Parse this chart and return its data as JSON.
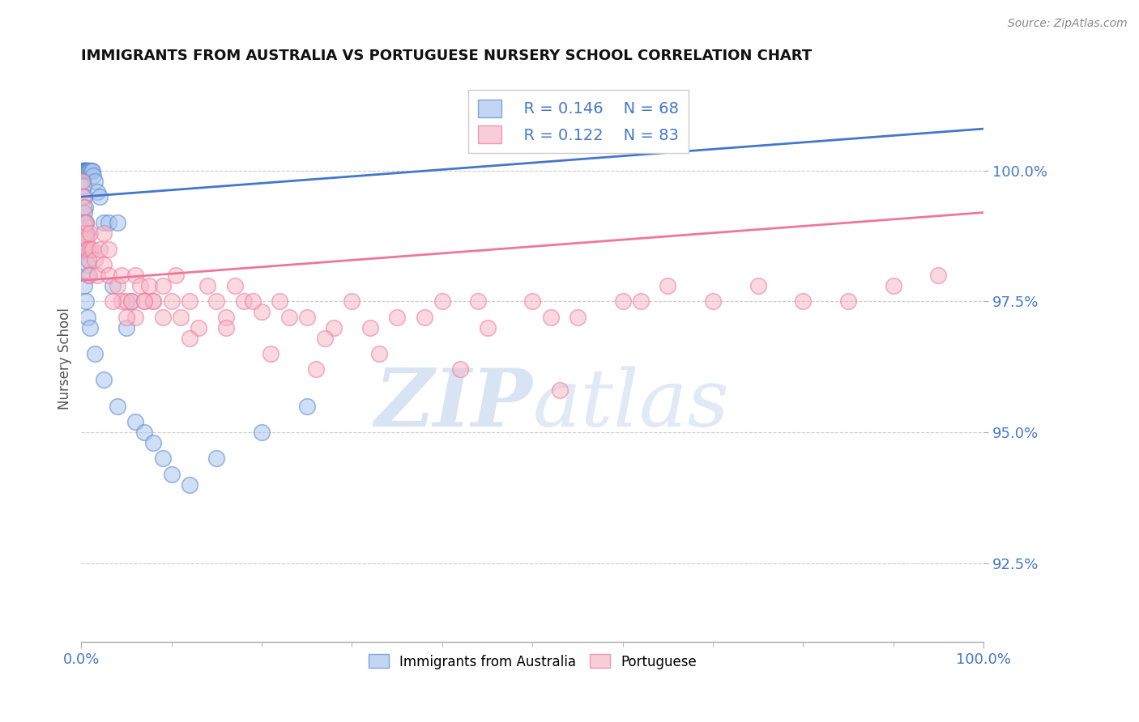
{
  "title": "IMMIGRANTS FROM AUSTRALIA VS PORTUGUESE NURSERY SCHOOL CORRELATION CHART",
  "source_text": "Source: ZipAtlas.com",
  "ylabel": "Nursery School",
  "xlim": [
    0.0,
    100.0
  ],
  "ylim": [
    91.0,
    101.8
  ],
  "yticks": [
    92.5,
    95.0,
    97.5,
    100.0
  ],
  "ytick_labels": [
    "92.5%",
    "95.0%",
    "97.5%",
    "100.0%"
  ],
  "xtick_labels_left": "0.0%",
  "xtick_labels_right": "100.0%",
  "legend_r1": "R = 0.146",
  "legend_n1": "N = 68",
  "legend_r2": "R = 0.122",
  "legend_n2": "N = 83",
  "color_blue": "#aac4f0",
  "color_pink": "#f5b8c8",
  "color_blue_edge": "#5588cc",
  "color_pink_edge": "#ee7799",
  "color_blue_line": "#4477cc",
  "color_pink_line": "#ee7799",
  "color_axis_text": "#4477cc",
  "watermark_zip": "ZIP",
  "watermark_atlas": "atlas",
  "background_color": "#FFFFFF",
  "blue_scatter_x": [
    0.1,
    0.15,
    0.2,
    0.2,
    0.25,
    0.25,
    0.3,
    0.3,
    0.35,
    0.35,
    0.4,
    0.4,
    0.45,
    0.5,
    0.5,
    0.5,
    0.55,
    0.6,
    0.6,
    0.65,
    0.7,
    0.7,
    0.75,
    0.8,
    0.9,
    1.0,
    1.1,
    1.2,
    1.3,
    1.5,
    1.8,
    2.0,
    2.5,
    3.0,
    4.0,
    0.15,
    0.2,
    0.3,
    0.4,
    0.5,
    0.6,
    0.7,
    0.8,
    0.3,
    0.4,
    0.5,
    0.6,
    0.7,
    0.8,
    3.5,
    5.0,
    5.5,
    0.3,
    0.5,
    0.7,
    1.0,
    1.5,
    2.5,
    4.0,
    6.0,
    7.0,
    8.0,
    9.0,
    10.0,
    12.0,
    15.0,
    20.0,
    25.0
  ],
  "blue_scatter_y": [
    100.0,
    100.0,
    100.0,
    100.0,
    100.0,
    100.0,
    100.0,
    100.0,
    100.0,
    100.0,
    100.0,
    100.0,
    100.0,
    100.0,
    100.0,
    100.0,
    100.0,
    100.0,
    100.0,
    100.0,
    100.0,
    100.0,
    100.0,
    100.0,
    100.0,
    100.0,
    100.0,
    100.0,
    99.9,
    99.8,
    99.6,
    99.5,
    99.0,
    99.0,
    99.0,
    99.8,
    99.7,
    99.5,
    99.3,
    99.0,
    98.8,
    98.5,
    98.3,
    99.2,
    99.0,
    98.8,
    98.5,
    98.2,
    98.0,
    97.8,
    97.0,
    97.5,
    97.8,
    97.5,
    97.2,
    97.0,
    96.5,
    96.0,
    95.5,
    95.2,
    95.0,
    94.8,
    94.5,
    94.2,
    94.0,
    94.5,
    95.0,
    95.5
  ],
  "pink_scatter_x": [
    0.1,
    0.15,
    0.2,
    0.25,
    0.3,
    0.35,
    0.4,
    0.5,
    0.5,
    0.6,
    0.7,
    0.8,
    0.9,
    1.0,
    1.0,
    1.2,
    1.5,
    1.8,
    2.0,
    2.5,
    2.5,
    3.0,
    3.0,
    4.0,
    4.5,
    4.5,
    5.0,
    5.5,
    6.0,
    6.5,
    7.0,
    7.5,
    8.0,
    9.0,
    10.0,
    10.5,
    12.0,
    14.0,
    15.0,
    17.0,
    18.0,
    20.0,
    22.0,
    25.0,
    28.0,
    30.0,
    35.0,
    40.0,
    45.0,
    50.0,
    55.0,
    60.0,
    65.0,
    70.0,
    80.0,
    90.0,
    6.0,
    8.0,
    11.0,
    13.0,
    16.0,
    19.0,
    23.0,
    27.0,
    32.0,
    38.0,
    44.0,
    52.0,
    62.0,
    75.0,
    85.0,
    95.0,
    3.5,
    5.0,
    7.0,
    9.0,
    12.0,
    16.0,
    21.0,
    26.0,
    33.0,
    42.0,
    53.0
  ],
  "pink_scatter_y": [
    99.8,
    99.5,
    99.3,
    99.0,
    98.8,
    98.6,
    98.5,
    98.8,
    99.0,
    98.7,
    98.5,
    98.3,
    98.0,
    98.5,
    98.8,
    98.5,
    98.3,
    98.0,
    98.5,
    98.2,
    98.8,
    98.0,
    98.5,
    97.8,
    97.5,
    98.0,
    97.5,
    97.5,
    98.0,
    97.8,
    97.5,
    97.8,
    97.5,
    97.8,
    97.5,
    98.0,
    97.5,
    97.8,
    97.5,
    97.8,
    97.5,
    97.3,
    97.5,
    97.2,
    97.0,
    97.5,
    97.2,
    97.5,
    97.0,
    97.5,
    97.2,
    97.5,
    97.8,
    97.5,
    97.5,
    97.8,
    97.2,
    97.5,
    97.2,
    97.0,
    97.2,
    97.5,
    97.2,
    96.8,
    97.0,
    97.2,
    97.5,
    97.2,
    97.5,
    97.8,
    97.5,
    98.0,
    97.5,
    97.2,
    97.5,
    97.2,
    96.8,
    97.0,
    96.5,
    96.2,
    96.5,
    96.2,
    95.8
  ],
  "blue_trend_x": [
    0.0,
    100.0
  ],
  "blue_trend_y": [
    99.5,
    100.8
  ],
  "pink_trend_x": [
    0.0,
    100.0
  ],
  "pink_trend_y": [
    97.9,
    99.2
  ]
}
